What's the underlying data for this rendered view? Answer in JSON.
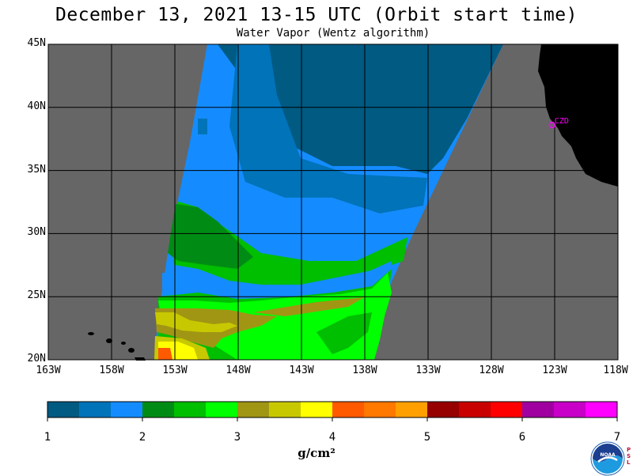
{
  "header": {
    "title": "December 13, 2021  13-15 UTC  (Orbit start time)",
    "subtitle": "Water Vapor (Wentz algorithm)"
  },
  "map": {
    "lat_labels": [
      "45N",
      "40N",
      "35N",
      "30N",
      "25N",
      "20N"
    ],
    "lon_labels": [
      "163W",
      "158W",
      "153W",
      "148W",
      "143W",
      "138W",
      "133W",
      "128W",
      "123W",
      "118W"
    ],
    "lat_range": [
      20,
      45
    ],
    "lon_range": [
      -163,
      -118
    ],
    "station_label": "CZD",
    "station": {
      "lat": 38.6,
      "lon": -123.2
    },
    "colors": {
      "no_data": "#666666",
      "land": "#000000",
      "station": "#ff00ff"
    }
  },
  "colorbar": {
    "tick_labels": [
      "1",
      "2",
      "3",
      "4",
      "5",
      "6",
      "7"
    ],
    "units": "g/cm²",
    "colors": [
      "#005a82",
      "#0073b9",
      "#148cff",
      "#008c14",
      "#00be00",
      "#00ff00",
      "#a09614",
      "#c8c800",
      "#ffff00",
      "#ff5a00",
      "#ff7800",
      "#ffa000",
      "#960000",
      "#c80000",
      "#ff0000",
      "#a000a0",
      "#c800c8",
      "#ff00ff"
    ]
  },
  "logo": {
    "name": "NOAA",
    "side_text": "PSL"
  }
}
